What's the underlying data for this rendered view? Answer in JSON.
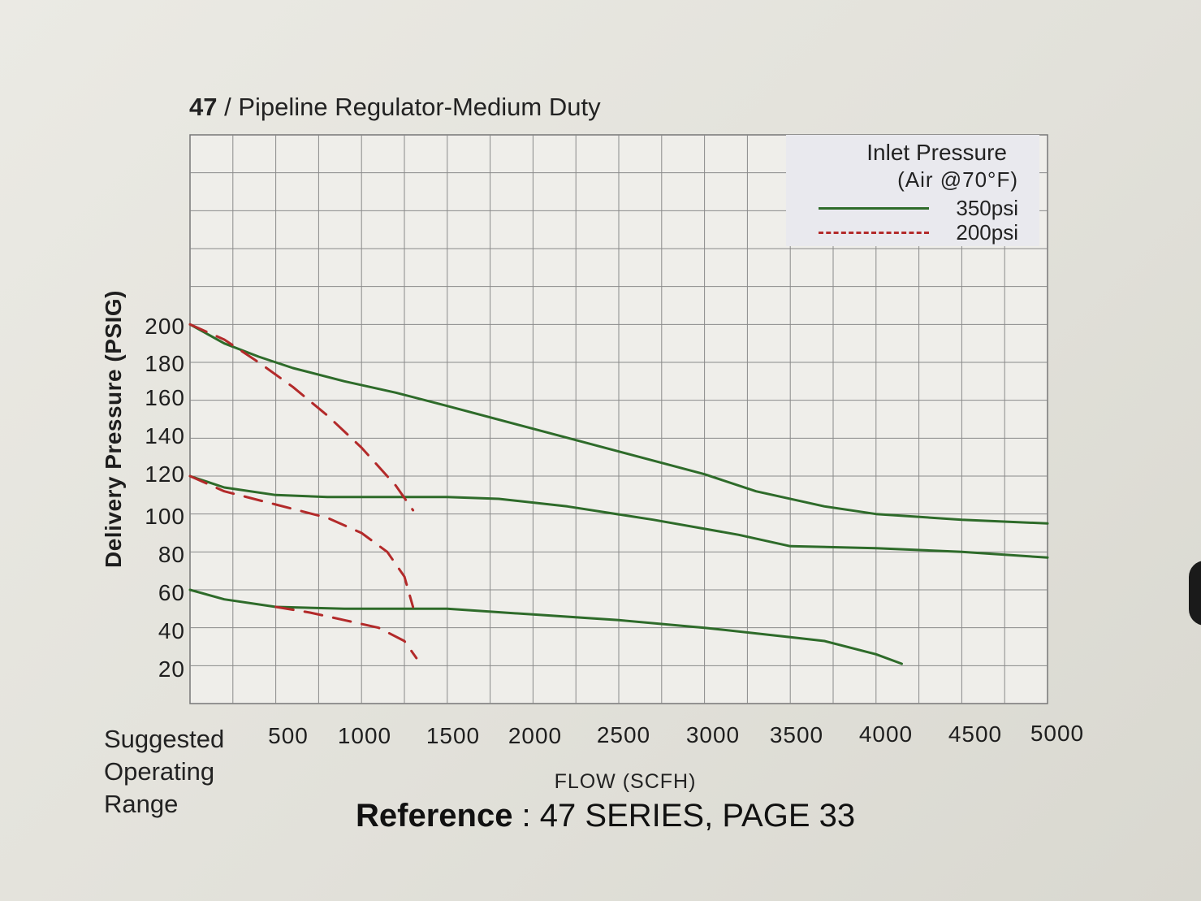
{
  "title": {
    "number": "47",
    "text": " / Pipeline Regulator-Medium Duty"
  },
  "legend": {
    "title": "Inlet Pressure",
    "subtitle": "(Air @70°F)",
    "items": [
      "350psi",
      "200psi"
    ]
  },
  "suggested_label": [
    "Suggested",
    "Operating",
    "Range"
  ],
  "reference": {
    "bold": "Reference",
    "rest": " : 47 SERIES, PAGE 33"
  },
  "colors": {
    "green": "#2e6b2a",
    "red": "#b32a2a",
    "grid": "#8a8a8a"
  },
  "chart_data": {
    "type": "line",
    "title": "47 / Pipeline Regulator-Medium Duty",
    "xlabel": "FLOW (SCFH)",
    "ylabel": "Delivery Pressure (PSIG)",
    "xlim": [
      0,
      5000
    ],
    "ylim": [
      0,
      300
    ],
    "x_ticks": [
      "500",
      "1000",
      "1500",
      "2000",
      "2500",
      "3000",
      "3500",
      "4000",
      "4500",
      "5000"
    ],
    "y_ticks": [
      "20",
      "40",
      "60",
      "80",
      "100",
      "120",
      "140",
      "160",
      "180",
      "200"
    ],
    "grid": true,
    "legend_position": "top-right",
    "series": [
      {
        "name": "350psi",
        "style": "solid",
        "setpoint": 200,
        "points": [
          [
            0,
            200
          ],
          [
            200,
            190
          ],
          [
            400,
            183
          ],
          [
            600,
            177
          ],
          [
            900,
            170
          ],
          [
            1200,
            164
          ],
          [
            1500,
            157
          ],
          [
            2000,
            145
          ],
          [
            2500,
            133
          ],
          [
            3000,
            121
          ],
          [
            3300,
            112
          ],
          [
            3700,
            104
          ],
          [
            4000,
            100
          ],
          [
            4500,
            97
          ],
          [
            5000,
            95
          ]
        ]
      },
      {
        "name": "350psi",
        "style": "solid",
        "setpoint": 120,
        "points": [
          [
            0,
            120
          ],
          [
            200,
            114
          ],
          [
            500,
            110
          ],
          [
            800,
            109
          ],
          [
            1500,
            109
          ],
          [
            1800,
            108
          ],
          [
            2200,
            104
          ],
          [
            2700,
            97
          ],
          [
            3200,
            89
          ],
          [
            3500,
            83
          ],
          [
            4000,
            82
          ],
          [
            4500,
            80
          ],
          [
            5000,
            77
          ]
        ]
      },
      {
        "name": "350psi",
        "style": "solid",
        "setpoint": 60,
        "points": [
          [
            0,
            60
          ],
          [
            200,
            55
          ],
          [
            500,
            51
          ],
          [
            900,
            50
          ],
          [
            1500,
            50
          ],
          [
            2000,
            47
          ],
          [
            2500,
            44
          ],
          [
            3000,
            40
          ],
          [
            3500,
            35
          ],
          [
            3700,
            33
          ],
          [
            4000,
            26
          ],
          [
            4150,
            21
          ]
        ]
      },
      {
        "name": "200psi",
        "style": "dashed",
        "setpoint": 200,
        "points": [
          [
            0,
            200
          ],
          [
            200,
            192
          ],
          [
            400,
            180
          ],
          [
            600,
            167
          ],
          [
            800,
            152
          ],
          [
            1000,
            135
          ],
          [
            1200,
            115
          ],
          [
            1300,
            102
          ]
        ]
      },
      {
        "name": "200psi",
        "style": "dashed",
        "setpoint": 120,
        "points": [
          [
            0,
            120
          ],
          [
            200,
            112
          ],
          [
            500,
            105
          ],
          [
            800,
            98
          ],
          [
            1000,
            90
          ],
          [
            1150,
            80
          ],
          [
            1250,
            67
          ],
          [
            1300,
            51
          ]
        ]
      },
      {
        "name": "200psi",
        "style": "dashed",
        "setpoint": 60,
        "points": [
          [
            500,
            51
          ],
          [
            700,
            48
          ],
          [
            900,
            44
          ],
          [
            1100,
            40
          ],
          [
            1250,
            33
          ],
          [
            1320,
            24
          ]
        ]
      }
    ]
  }
}
